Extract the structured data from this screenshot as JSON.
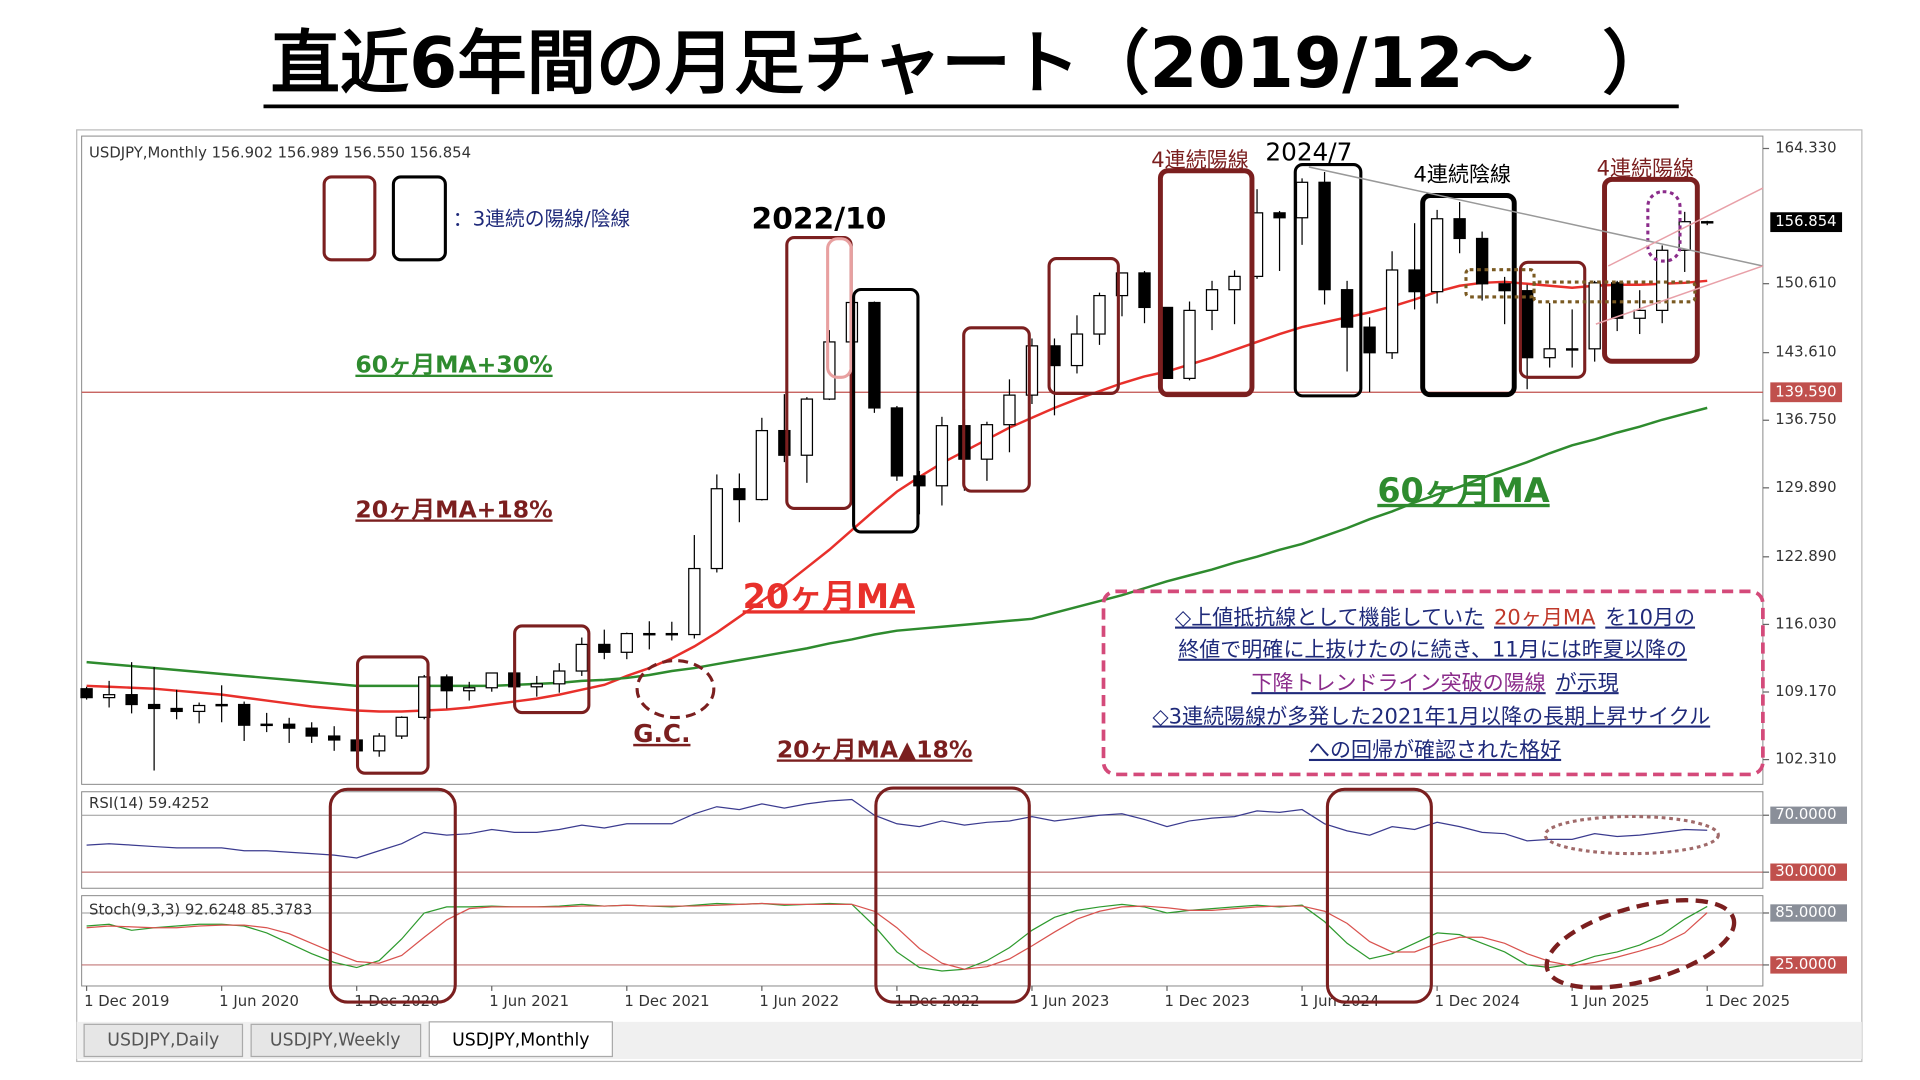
{
  "title": "直近6年間の月足チャート（2019/12～　）",
  "tabs": [
    "USDJPY,Daily",
    "USDJPY,Weekly",
    "USDJPY,Monthly"
  ],
  "chart_data": [
    {
      "type": "candlestick",
      "info": "USDJPY,Monthly 156.902 156.989 156.550 156.854",
      "categories": [
        "1 Dec 2019",
        null,
        null,
        null,
        null,
        null,
        "1 Jun 2020",
        null,
        null,
        null,
        null,
        null,
        "1 Dec 2020",
        null,
        null,
        null,
        null,
        null,
        "1 Jun 2021",
        null,
        null,
        null,
        null,
        null,
        "1 Dec 2021",
        null,
        null,
        null,
        null,
        null,
        "1 Jun 2022",
        null,
        null,
        null,
        null,
        null,
        "1 Dec 2022",
        null,
        null,
        null,
        null,
        null,
        "1 Jun 2023",
        null,
        null,
        null,
        null,
        null,
        "1 Dec 2023",
        null,
        null,
        null,
        null,
        null,
        "1 Jun 2024",
        null,
        null,
        null,
        null,
        null,
        "1 Dec 2024",
        null,
        null,
        null,
        null,
        null,
        "1 Jun 2025",
        null,
        null,
        null,
        null,
        null,
        "1 Dec 2025"
      ],
      "open": [
        109.5,
        108.6,
        108.9,
        107.9,
        107.5,
        107.2,
        107.8,
        107.9,
        105.8,
        105.9,
        105.5,
        104.7,
        104.3,
        103.2,
        104.7,
        106.6,
        110.7,
        109.3,
        109.6,
        111.1,
        109.7,
        110.0,
        111.3,
        114.0,
        113.2,
        115.1,
        115.1,
        115.0,
        121.7,
        129.8,
        128.7,
        135.7,
        133.2,
        138.9,
        144.7,
        148.7,
        138.0,
        131.1,
        130.1,
        136.2,
        132.8,
        136.3,
        139.3,
        144.3,
        142.3,
        145.5,
        149.4,
        151.7,
        148.2,
        141.0,
        147.9,
        150.0,
        151.35,
        157.8,
        157.3,
        160.9,
        150.0,
        146.2,
        143.6,
        152.0,
        149.8,
        157.2,
        155.2,
        150.6,
        149.9,
        143.1,
        144.0,
        144.0,
        150.7,
        147.1,
        147.9,
        154.0,
        156.902
      ],
      "high": [
        109.7,
        110.3,
        112.2,
        111.7,
        109.4,
        108.1,
        109.85,
        108.2,
        107.05,
        106.55,
        106.1,
        105.7,
        104.75,
        105.0,
        106.7,
        110.9,
        110.95,
        110.2,
        111.1,
        111.65,
        110.8,
        112.1,
        114.7,
        115.5,
        115.2,
        116.35,
        116.3,
        125.1,
        131.25,
        131.35,
        137.0,
        139.4,
        139.1,
        145.9,
        151.95,
        148.8,
        138.2,
        131.6,
        137.1,
        137.9,
        136.6,
        140.9,
        145.05,
        145.05,
        147.4,
        149.7,
        151.7,
        151.9,
        148.2,
        148.8,
        150.9,
        151.97,
        160.2,
        157.99,
        161.3,
        161.95,
        150.9,
        147.2,
        153.9,
        156.75,
        158.1,
        158.9,
        155.9,
        151.3,
        150.5,
        148.65,
        148.0,
        150.9,
        150.9,
        149.95,
        154.5,
        157.9,
        156.989
      ],
      "low": [
        108.4,
        107.6,
        107.0,
        101.2,
        106.4,
        105.99,
        106.1,
        104.2,
        105.1,
        104.0,
        104.0,
        103.2,
        102.9,
        102.6,
        104.4,
        106.4,
        107.5,
        108.3,
        109.2,
        109.1,
        108.7,
        109.1,
        110.8,
        112.5,
        112.5,
        113.5,
        114.4,
        114.6,
        121.3,
        126.4,
        128.6,
        132.5,
        130.4,
        138.8,
        143.5,
        137.5,
        130.6,
        127.2,
        128.1,
        129.6,
        130.6,
        133.5,
        138.4,
        137.25,
        141.5,
        144.4,
        147.3,
        146.6,
        140.95,
        140.8,
        145.9,
        146.5,
        151.1,
        151.9,
        154.55,
        148.5,
        141.7,
        139.6,
        142.97,
        148.0,
        148.6,
        153.7,
        148.9,
        146.5,
        139.9,
        142.1,
        142.1,
        142.7,
        145.8,
        145.5,
        146.6,
        151.8,
        156.55
      ],
      "close": [
        108.6,
        108.9,
        107.9,
        107.5,
        107.2,
        107.8,
        107.9,
        105.8,
        105.9,
        105.5,
        104.7,
        104.3,
        103.2,
        104.7,
        106.6,
        110.7,
        109.3,
        109.6,
        111.1,
        109.7,
        110.0,
        111.3,
        114.0,
        113.2,
        115.1,
        115.1,
        115.0,
        121.7,
        129.8,
        128.7,
        135.7,
        133.2,
        138.9,
        144.7,
        148.7,
        138.0,
        131.1,
        130.1,
        136.2,
        132.8,
        136.3,
        139.3,
        144.3,
        142.3,
        145.5,
        149.4,
        151.7,
        148.2,
        141.0,
        147.9,
        150.0,
        151.35,
        157.8,
        157.3,
        160.9,
        150.0,
        146.2,
        143.6,
        152.0,
        149.8,
        157.2,
        155.2,
        150.6,
        149.9,
        143.1,
        144.0,
        144.0,
        150.7,
        147.1,
        147.9,
        154.0,
        156.902,
        156.854
      ],
      "up_color": "#ffffff",
      "down_color": "#000000",
      "series": [
        {
          "name": "20ヶ月MA",
          "color": "#e8302b",
          "values": [
            109.8,
            109.7,
            109.6,
            109.5,
            109.3,
            109.1,
            108.9,
            108.6,
            108.3,
            108.0,
            107.7,
            107.5,
            107.3,
            107.2,
            107.2,
            107.3,
            107.4,
            107.6,
            107.9,
            108.2,
            108.5,
            108.9,
            109.4,
            109.9,
            110.8,
            111.6,
            112.6,
            113.8,
            115.2,
            116.8,
            118.4,
            120.0,
            121.8,
            123.6,
            125.6,
            127.6,
            129.5,
            131.0,
            132.4,
            133.6,
            134.8,
            136.0,
            137.0,
            138.0,
            138.9,
            139.7,
            140.5,
            141.2,
            141.7,
            142.4,
            143.1,
            143.9,
            144.7,
            145.5,
            146.2,
            146.7,
            147.2,
            147.7,
            148.3,
            149.0,
            149.8,
            150.4,
            150.7,
            150.8,
            150.6,
            150.4,
            150.2,
            150.4,
            150.5,
            150.5,
            150.6,
            150.7,
            150.9
          ]
        },
        {
          "name": "60ヶ月MA",
          "color": "#2e8b2e",
          "values": [
            112.2,
            112.0,
            111.8,
            111.6,
            111.4,
            111.2,
            111.0,
            110.8,
            110.6,
            110.4,
            110.2,
            110.0,
            109.8,
            109.8,
            109.8,
            109.8,
            109.8,
            109.8,
            109.8,
            109.9,
            110.0,
            110.1,
            110.3,
            110.4,
            110.6,
            110.9,
            111.3,
            111.6,
            112.0,
            112.4,
            112.8,
            113.2,
            113.6,
            114.1,
            114.5,
            115.0,
            115.4,
            115.6,
            115.8,
            116.0,
            116.2,
            116.4,
            116.6,
            117.2,
            117.8,
            118.4,
            119.0,
            119.7,
            120.4,
            121.0,
            121.6,
            122.3,
            122.9,
            123.6,
            124.2,
            125.0,
            125.8,
            126.7,
            127.5,
            128.4,
            129.2,
            130.0,
            130.9,
            131.7,
            132.5,
            133.4,
            134.2,
            134.8,
            135.5,
            136.1,
            136.8,
            137.4,
            138.0
          ]
        }
      ],
      "ylim": [
        99.8,
        165.59
      ],
      "yticks": [
        {
          "value": 164.33,
          "label": "164.330"
        },
        {
          "value": 150.61,
          "label": "150.610"
        },
        {
          "value": 143.61,
          "label": "143.610"
        },
        {
          "value": 136.75,
          "label": "136.750"
        },
        {
          "value": 129.89,
          "label": "129.890"
        },
        {
          "value": 122.89,
          "label": "122.890"
        },
        {
          "value": 116.03,
          "label": "116.030"
        },
        {
          "value": 109.17,
          "label": "109.170"
        },
        {
          "value": 102.31,
          "label": "102.310"
        }
      ],
      "hline": {
        "value": 139.59,
        "label": "139.590",
        "color": "#c0504d"
      },
      "grid": false,
      "annotations": [
        "2022/10",
        "2024/7",
        "4連続陽線",
        "4連続陰線",
        "4連続陽線",
        "60ヶ月MA+30%",
        "20ヶ月MA+18%",
        "G.C.",
        "20ヶ月MA▲18%",
        "：3連続の陽線/陰線",
        "◇上値抵抗線として機能していた",
        "20ヶ月MA",
        "を10月の",
        "終値で明確に上抜けたのに続き、11月には昨夏以降の",
        "下降トレンドライン突破の陽線",
        "が示現",
        "◇3連続陽線が多発した2021年1月以降の長期上昇サイクル",
        "への回帰が確認された格好"
      ]
    },
    {
      "type": "line",
      "info": "RSI(14) 59.4252",
      "series": [
        {
          "name": "RSI(14)",
          "color": "#3b3b8f",
          "values": [
            49,
            50,
            49,
            48,
            47,
            47,
            47,
            45,
            45,
            44,
            43,
            42,
            40,
            45,
            50,
            58,
            56,
            57,
            60,
            58,
            58,
            60,
            63,
            61,
            64,
            64,
            64,
            71,
            76,
            74,
            78,
            75,
            78,
            80,
            81,
            70,
            64,
            62,
            66,
            63,
            65,
            66,
            69,
            66,
            68,
            70,
            71,
            67,
            62,
            66,
            68,
            69,
            73,
            72,
            74,
            64,
            59,
            56,
            62,
            60,
            65,
            62,
            58,
            57,
            52,
            53,
            53,
            57,
            55,
            56,
            58,
            60,
            59.4252
          ]
        }
      ],
      "ylim": [
        18.7,
        86.5
      ],
      "yticks": [
        {
          "value": 70,
          "label": "70.0000"
        },
        {
          "value": 30,
          "label": "30.0000"
        }
      ]
    },
    {
      "type": "line",
      "info": "Stoch(9,3,3) 92.6248 85.3783",
      "series": [
        {
          "name": "%K",
          "color": "#2e9a2e",
          "values": [
            70,
            72,
            65,
            68,
            70,
            72,
            72,
            70,
            62,
            50,
            38,
            28,
            22,
            30,
            55,
            85,
            92,
            92,
            93,
            92,
            92,
            93,
            95,
            93,
            94,
            93,
            92,
            94,
            96,
            95,
            96,
            94,
            95,
            96,
            95,
            70,
            40,
            22,
            18,
            20,
            30,
            45,
            65,
            80,
            88,
            92,
            95,
            92,
            85,
            88,
            90,
            92,
            94,
            92,
            94,
            75,
            50,
            32,
            38,
            50,
            62,
            60,
            50,
            40,
            25,
            22,
            26,
            35,
            40,
            48,
            60,
            78,
            92.6248
          ]
        },
        {
          "name": "%D",
          "color": "#d9534f",
          "values": [
            68,
            70,
            69,
            68,
            68,
            70,
            71,
            71,
            68,
            61,
            50,
            39,
            29,
            27,
            36,
            57,
            77,
            90,
            92,
            92,
            92,
            92,
            93,
            93,
            94,
            93,
            93,
            93,
            94,
            95,
            96,
            95,
            95,
            95,
            95,
            87,
            68,
            44,
            27,
            20,
            23,
            32,
            47,
            63,
            78,
            87,
            92,
            93,
            91,
            88,
            88,
            90,
            92,
            93,
            93,
            87,
            73,
            52,
            40,
            40,
            50,
            57,
            57,
            50,
            38,
            29,
            24,
            28,
            34,
            41,
            49,
            62,
            85.3783
          ]
        }
      ],
      "ylim": [
        0.7,
        105
      ],
      "yticks": [
        {
          "value": 85,
          "label": "85.0000"
        },
        {
          "value": 25,
          "label": "25.0000"
        }
      ]
    }
  ]
}
